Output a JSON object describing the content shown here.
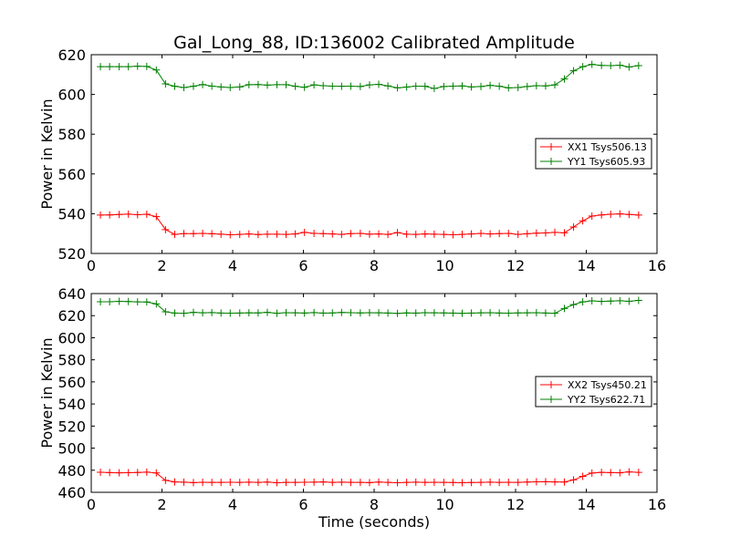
{
  "title": "Gal_Long_88, ID:136002 Calibrated Amplitude",
  "chart_data": [
    {
      "type": "line",
      "title": "Gal_Long_88, ID:136002 Calibrated Amplitude",
      "xlabel": "",
      "ylabel": "Power in Kelvin",
      "xlim": [
        0,
        16
      ],
      "ylim": [
        520,
        620
      ],
      "xticks": [
        0,
        2,
        4,
        6,
        8,
        10,
        12,
        14,
        16
      ],
      "yticks": [
        520,
        540,
        560,
        580,
        600,
        620
      ],
      "grid": false,
      "legend_position": "center-right",
      "x": [
        0.26,
        0.52,
        0.79,
        1.05,
        1.31,
        1.57,
        1.84,
        2.1,
        2.36,
        2.62,
        2.89,
        3.15,
        3.41,
        3.67,
        3.93,
        4.2,
        4.46,
        4.72,
        4.98,
        5.25,
        5.51,
        5.77,
        6.03,
        6.3,
        6.56,
        6.82,
        7.08,
        7.34,
        7.61,
        7.87,
        8.13,
        8.39,
        8.66,
        8.92,
        9.18,
        9.44,
        9.7,
        9.97,
        10.23,
        10.49,
        10.75,
        11.02,
        11.28,
        11.54,
        11.8,
        12.07,
        12.33,
        12.59,
        12.85,
        13.11,
        13.38,
        13.64,
        13.9,
        14.16,
        14.43,
        14.69,
        14.95,
        15.21,
        15.48
      ],
      "series": [
        {
          "name": "XX1 Tsys506.13",
          "color": "#ff0000",
          "values": [
            539.3,
            539.4,
            539.6,
            539.8,
            539.5,
            539.7,
            538.5,
            532.0,
            529.6,
            530.0,
            530.0,
            530.1,
            529.9,
            529.7,
            529.4,
            529.6,
            529.8,
            529.5,
            529.7,
            529.7,
            529.6,
            529.8,
            530.6,
            530.1,
            530.0,
            529.8,
            529.6,
            530.0,
            530.1,
            529.7,
            529.8,
            529.6,
            530.5,
            529.7,
            529.6,
            529.8,
            529.7,
            529.6,
            529.4,
            529.6,
            529.8,
            530.1,
            529.8,
            530.0,
            530.1,
            529.6,
            529.9,
            530.2,
            530.3,
            530.6,
            530.4,
            533.3,
            536.4,
            538.8,
            539.4,
            539.7,
            539.9,
            539.6,
            539.3
          ]
        },
        {
          "name": "YY1 Tsys605.93",
          "color": "#008000",
          "values": [
            614.0,
            614.0,
            614.0,
            614.0,
            614.2,
            614.1,
            612.3,
            605.3,
            604.1,
            603.5,
            604.1,
            605.0,
            604.2,
            603.8,
            603.5,
            603.8,
            604.9,
            605.0,
            604.7,
            604.9,
            604.9,
            604.1,
            603.6,
            604.8,
            604.4,
            604.2,
            604.1,
            604.2,
            604.0,
            604.8,
            605.1,
            604.3,
            603.3,
            603.7,
            604.2,
            604.1,
            603.0,
            604.0,
            604.2,
            604.3,
            603.8,
            604.0,
            604.6,
            604.1,
            603.3,
            603.5,
            604.0,
            604.4,
            604.3,
            604.8,
            607.8,
            611.9,
            614.0,
            615.1,
            614.6,
            614.5,
            614.7,
            613.8,
            614.5
          ]
        }
      ]
    },
    {
      "type": "line",
      "title": "",
      "xlabel": "Time (seconds)",
      "ylabel": "Power in Kelvin",
      "xlim": [
        0,
        16
      ],
      "ylim": [
        460,
        640
      ],
      "xticks": [
        0,
        2,
        4,
        6,
        8,
        10,
        12,
        14,
        16
      ],
      "yticks": [
        460,
        480,
        500,
        520,
        540,
        560,
        580,
        600,
        620,
        640
      ],
      "grid": false,
      "legend_position": "center-right",
      "x": [
        0.26,
        0.52,
        0.79,
        1.05,
        1.31,
        1.57,
        1.84,
        2.1,
        2.36,
        2.62,
        2.89,
        3.15,
        3.41,
        3.67,
        3.93,
        4.2,
        4.46,
        4.72,
        4.98,
        5.25,
        5.51,
        5.77,
        6.03,
        6.3,
        6.56,
        6.82,
        7.08,
        7.34,
        7.61,
        7.87,
        8.13,
        8.39,
        8.66,
        8.92,
        9.18,
        9.44,
        9.7,
        9.97,
        10.23,
        10.49,
        10.75,
        11.02,
        11.28,
        11.54,
        11.8,
        12.07,
        12.33,
        12.59,
        12.85,
        13.11,
        13.38,
        13.64,
        13.9,
        14.16,
        14.43,
        14.69,
        14.95,
        15.21,
        15.48
      ],
      "series": [
        {
          "name": "XX2 Tsys450.21",
          "color": "#ff0000",
          "values": [
            478.2,
            477.9,
            477.6,
            477.8,
            478.0,
            478.3,
            477.5,
            470.8,
            469.4,
            469.2,
            468.8,
            469.1,
            469.0,
            469.0,
            469.1,
            469.0,
            469.2,
            469.0,
            469.3,
            468.7,
            469.0,
            469.0,
            469.1,
            469.2,
            469.4,
            469.0,
            469.2,
            469.0,
            469.0,
            468.8,
            469.3,
            469.0,
            468.7,
            469.0,
            469.2,
            469.0,
            469.1,
            469.0,
            468.9,
            468.7,
            468.9,
            469.0,
            469.2,
            469.0,
            469.1,
            469.0,
            469.3,
            469.5,
            469.6,
            469.4,
            469.3,
            471.2,
            474.5,
            477.4,
            478.1,
            477.9,
            477.7,
            478.5,
            478.1
          ]
        },
        {
          "name": "YY2 Tsys622.71",
          "color": "#008000",
          "values": [
            632.6,
            632.6,
            633.0,
            632.8,
            632.5,
            632.4,
            630.6,
            623.5,
            622.3,
            622.1,
            623.0,
            622.6,
            622.8,
            622.4,
            622.2,
            622.4,
            622.6,
            622.5,
            623.0,
            622.1,
            622.7,
            622.6,
            622.4,
            622.8,
            622.3,
            622.5,
            622.9,
            622.7,
            622.5,
            622.7,
            622.6,
            622.4,
            622.0,
            622.5,
            622.3,
            622.7,
            622.6,
            622.5,
            622.3,
            622.1,
            622.3,
            622.6,
            622.7,
            622.4,
            622.2,
            622.5,
            622.6,
            622.7,
            622.4,
            622.1,
            626.5,
            630.0,
            632.5,
            633.4,
            632.9,
            633.2,
            633.5,
            633.0,
            633.8
          ]
        }
      ]
    }
  ]
}
